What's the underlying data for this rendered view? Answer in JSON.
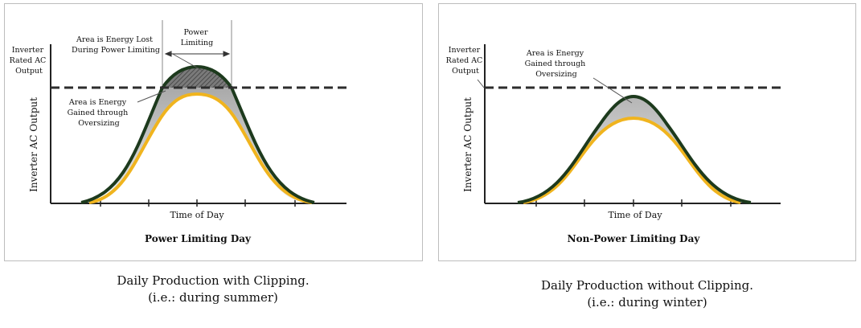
{
  "colors": {
    "rated_line": "#2d2d2d",
    "clipped_curve": "#1d3a1d",
    "actual_curve": "#f0b41e",
    "lost_fill": "#6e6e6e",
    "gained_fill": "#d6d6d6"
  },
  "left_panel": {
    "title": "Power Limiting Day",
    "x_axis_label": "Time of Day",
    "y_axis_label": "Inverter AC Output",
    "rated_label": [
      "Inverter",
      "Rated AC",
      "Output"
    ],
    "lost_annotation": [
      "Area is Energy Lost",
      "During Power Limiting"
    ],
    "gained_annotation": [
      "Area is Energy",
      "Gained through",
      "Oversizing"
    ],
    "power_limiting_label": [
      "Power",
      "Limiting"
    ],
    "caption": [
      "Daily Production with Clipping.",
      "(i.e.: during summer)"
    ]
  },
  "right_panel": {
    "title": "Non-Power Limiting Day",
    "x_axis_label": "Time of Day",
    "y_axis_label": "Inverter AC Output",
    "rated_label": [
      "Inverter",
      "Rated AC",
      "Output"
    ],
    "gained_annotation": [
      "Area is Energy",
      "Gained through",
      "Oversizing"
    ],
    "caption": [
      "Daily Production without Clipping.",
      "(i.e.: during winter)"
    ]
  }
}
